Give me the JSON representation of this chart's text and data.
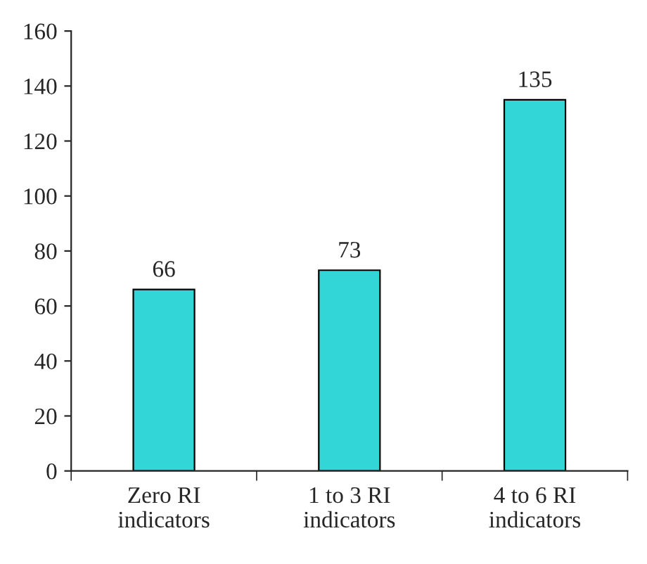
{
  "chart_data": {
    "type": "bar",
    "categories": [
      "Zero RI\nindicators",
      "1 to 3 RI\nindicators",
      "4 to 6 RI\nindicators"
    ],
    "values": [
      66,
      73,
      135
    ],
    "color": "#33d6d6",
    "ylim": [
      0,
      160
    ],
    "yticks": [
      0,
      20,
      40,
      60,
      80,
      100,
      120,
      140,
      160
    ],
    "data_labels": true,
    "grid": false,
    "legend": false
  }
}
